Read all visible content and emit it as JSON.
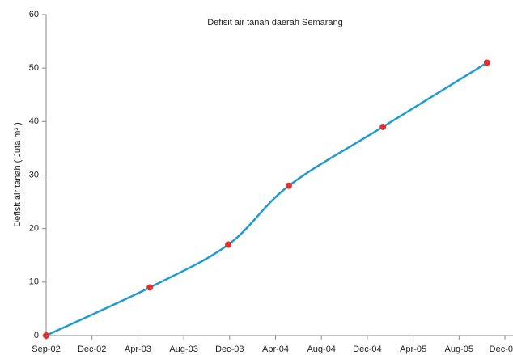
{
  "chart_data": {
    "type": "line",
    "title": "Defisit air tanah daerah Semarang",
    "y_label": "Defisit air tanah ( Juta m³ )",
    "x": [
      0,
      2.26,
      3.97,
      5.29,
      7.34,
      9.61
    ],
    "series": [
      {
        "name": "Defisit air tanah",
        "color": "#1f9bd1",
        "marker_color": "#e03030",
        "values": [
          0,
          9,
          17,
          28,
          39,
          51
        ]
      }
    ],
    "xlim": [
      0,
      10
    ],
    "xticks": [
      {
        "value": 0,
        "label": "Sep-02"
      },
      {
        "value": 1,
        "label": "Dec-02"
      },
      {
        "value": 2,
        "label": "Apr-03"
      },
      {
        "value": 3,
        "label": "Aug-03"
      },
      {
        "value": 4,
        "label": "Dec-03"
      },
      {
        "value": 5,
        "label": "Apr-04"
      },
      {
        "value": 6,
        "label": "Aug-04"
      },
      {
        "value": 7,
        "label": "Dec-04"
      },
      {
        "value": 8,
        "label": "Apr-05"
      },
      {
        "value": 9,
        "label": "Aug-05"
      },
      {
        "value": 10,
        "label": "Dec-0"
      }
    ],
    "ylim": [
      0,
      60
    ],
    "yticks": [
      0,
      10,
      20,
      30,
      40,
      50,
      60
    ],
    "grid": false
  }
}
